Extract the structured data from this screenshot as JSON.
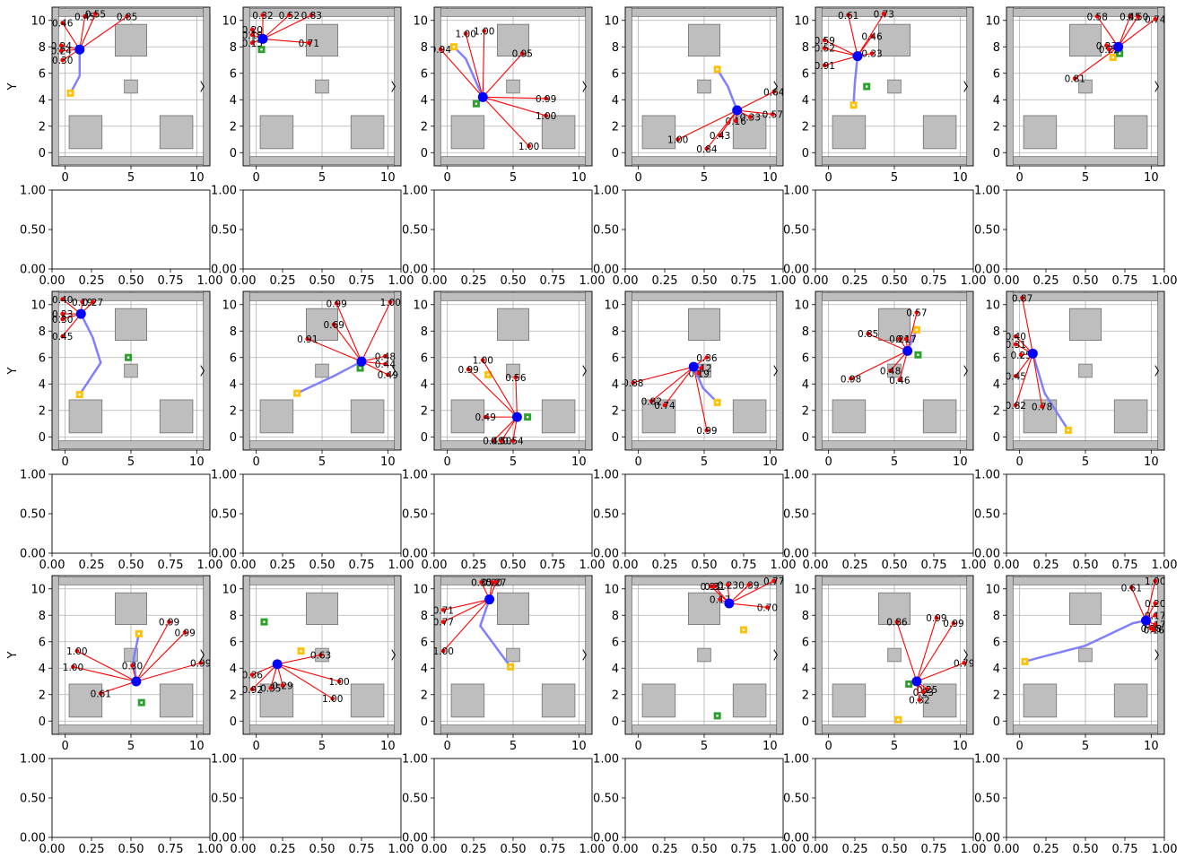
{
  "chart_data": {
    "type": "scatter",
    "grid": true,
    "xlim": [
      -1,
      11
    ],
    "ylim": [
      -1,
      11
    ],
    "xticks": [
      0,
      5,
      10
    ],
    "yticks": [
      0,
      2,
      4,
      6,
      8,
      10
    ],
    "empty_ticks": [
      "0.00",
      "0.25",
      "0.50",
      "0.75",
      "1.00"
    ],
    "ylabel": "Y",
    "colors": {
      "robot": "#0000ff",
      "ray": "#ff0000",
      "path": "#8080ff",
      "goal": "#2ca02c",
      "start": "#ffc107",
      "obstacle_fill": "#bebebe",
      "obstacle_edge": "#707070"
    },
    "obstacles": [
      [
        -0.5,
        10.3,
        11,
        0.6
      ],
      [
        -0.5,
        -0.9,
        11,
        0.6
      ],
      [
        -1,
        -1,
        0.5,
        12
      ],
      [
        10.5,
        -1,
        0.5,
        12
      ],
      [
        3.8,
        7.3,
        2.4,
        2.4
      ],
      [
        4.5,
        4.5,
        1,
        1
      ],
      [
        0.3,
        0.3,
        2.5,
        2.5
      ],
      [
        7.2,
        0.3,
        2.5,
        2.5
      ]
    ],
    "panels": [
      {
        "robot": [
          1.1,
          7.8
        ],
        "start": [
          0.4,
          4.5
        ],
        "goal": null,
        "path": [
          [
            0.4,
            4.5
          ],
          [
            1.1,
            5.8
          ],
          [
            1.1,
            7.8
          ]
        ],
        "rays": [
          [
            -0.2,
            9.8,
            "0.46"
          ],
          [
            1.5,
            10.3,
            "0.45"
          ],
          [
            2.3,
            10.5,
            "0.55"
          ],
          [
            4.7,
            10.3,
            "0.85"
          ],
          [
            -0.3,
            8.1,
            "0.24"
          ],
          [
            -0.3,
            7.7,
            "0.24"
          ],
          [
            -0.2,
            7.0,
            "0.30"
          ]
        ]
      },
      {
        "robot": [
          0.5,
          8.6
        ],
        "start": null,
        "goal": [
          0.4,
          7.8
        ],
        "path": [],
        "rays": [
          [
            0.5,
            10.4,
            "0.32"
          ],
          [
            2.5,
            10.4,
            "0.52"
          ],
          [
            4.2,
            10.4,
            "0.83"
          ],
          [
            -0.3,
            9.3,
            "0.20"
          ],
          [
            -0.3,
            8.9,
            "0.18"
          ],
          [
            -0.3,
            8.3,
            "0.15"
          ],
          [
            4.0,
            8.3,
            "0.71"
          ]
        ]
      },
      {
        "robot": [
          2.7,
          4.2
        ],
        "start": [
          0.5,
          8.0
        ],
        "goal": [
          2.2,
          3.7
        ],
        "path": [
          [
            0.5,
            8.0
          ],
          [
            1.4,
            7.1
          ],
          [
            2.7,
            4.2
          ]
        ],
        "rays": [
          [
            1.4,
            9.0,
            "1.00"
          ],
          [
            2.8,
            9.2,
            "1.00"
          ],
          [
            -0.5,
            7.8,
            "0.94"
          ],
          [
            5.7,
            7.5,
            "0.95"
          ],
          [
            7.5,
            4.1,
            "0.99"
          ],
          [
            7.5,
            2.8,
            "1.00"
          ],
          [
            6.2,
            0.5,
            "1.00"
          ]
        ]
      },
      {
        "robot": [
          7.5,
          3.2
        ],
        "start": [
          6.0,
          6.3
        ],
        "goal": null,
        "path": [
          [
            6.0,
            6.3
          ],
          [
            6.8,
            5.0
          ],
          [
            7.5,
            3.2
          ]
        ],
        "rays": [
          [
            10.3,
            4.6,
            "0.64"
          ],
          [
            10.2,
            2.9,
            "0.57"
          ],
          [
            8.5,
            2.7,
            "0.33"
          ],
          [
            7.4,
            2.4,
            "0.16"
          ],
          [
            6.2,
            1.3,
            "0.43"
          ],
          [
            5.2,
            0.3,
            "0.84"
          ],
          [
            3.0,
            1.0,
            "1.00"
          ]
        ]
      },
      {
        "robot": [
          2.2,
          7.3
        ],
        "start": [
          1.9,
          3.6
        ],
        "goal": [
          2.9,
          5.0
        ],
        "path": [
          [
            1.9,
            3.6
          ],
          [
            2.0,
            5.3
          ],
          [
            2.2,
            7.3
          ]
        ],
        "rays": [
          [
            1.5,
            10.4,
            "0.61"
          ],
          [
            4.2,
            10.5,
            "0.73"
          ],
          [
            3.3,
            8.8,
            "0.46"
          ],
          [
            -0.3,
            8.5,
            "0.59"
          ],
          [
            -0.3,
            7.9,
            "0.52"
          ],
          [
            3.3,
            7.5,
            "0.33"
          ],
          [
            -0.3,
            6.6,
            "0.91"
          ]
        ]
      },
      {
        "robot": [
          7.5,
          8.0
        ],
        "start": [
          7.1,
          7.2
        ],
        "goal": [
          7.6,
          7.5
        ],
        "path": [
          [
            7.1,
            7.2
          ],
          [
            7.5,
            8.0
          ]
        ],
        "rays": [
          [
            5.9,
            10.3,
            "0.58"
          ],
          [
            8.4,
            10.3,
            "0.45"
          ],
          [
            9.0,
            10.3,
            "0.50"
          ],
          [
            10.3,
            10.1,
            "0.74"
          ],
          [
            6.6,
            8.1,
            "0.23"
          ],
          [
            6.8,
            7.8,
            "0.22"
          ],
          [
            4.2,
            5.6,
            "0.81"
          ]
        ]
      },
      {
        "robot": [
          1.2,
          9.3
        ],
        "start": [
          1.1,
          3.2
        ],
        "goal": [
          4.8,
          6.0
        ],
        "path": [
          [
            1.1,
            3.2
          ],
          [
            2.7,
            5.6
          ],
          [
            2.1,
            7.5
          ],
          [
            1.2,
            9.3
          ]
        ],
        "rays": [
          [
            -0.2,
            10.4,
            "0.40"
          ],
          [
            1.3,
            10.2,
            "0.19"
          ],
          [
            2.1,
            10.2,
            "0.27"
          ],
          [
            -0.2,
            9.3,
            "0.23"
          ],
          [
            -0.2,
            8.9,
            "0.30"
          ],
          [
            -0.2,
            7.6,
            "0.45"
          ]
        ]
      },
      {
        "robot": [
          8.0,
          5.7
        ],
        "start": [
          3.1,
          3.3
        ],
        "goal": [
          7.9,
          5.2
        ],
        "path": [
          [
            3.1,
            3.3
          ],
          [
            5.9,
            4.6
          ],
          [
            8.0,
            5.7
          ]
        ],
        "rays": [
          [
            6.1,
            10.1,
            "0.99"
          ],
          [
            10.2,
            10.2,
            "1.00"
          ],
          [
            5.9,
            8.5,
            "0.69"
          ],
          [
            3.9,
            7.4,
            "0.91"
          ],
          [
            9.8,
            6.1,
            "0.48"
          ],
          [
            9.8,
            5.5,
            "0.44"
          ],
          [
            10.0,
            4.7,
            "0.49"
          ]
        ]
      },
      {
        "robot": [
          5.3,
          1.5
        ],
        "start": [
          3.1,
          4.7
        ],
        "goal": [
          6.1,
          1.5
        ],
        "path": [],
        "rays": [
          [
            2.7,
            5.8,
            "1.00"
          ],
          [
            1.6,
            5.1,
            "0.99"
          ],
          [
            5.2,
            4.5,
            "0.56"
          ],
          [
            2.9,
            1.5,
            "0.49"
          ],
          [
            3.5,
            -0.3,
            "0.49"
          ],
          [
            4.1,
            -0.3,
            "0.50"
          ],
          [
            5.0,
            -0.3,
            "0.54"
          ]
        ]
      },
      {
        "robot": [
          4.2,
          5.3
        ],
        "start": [
          6.0,
          2.6
        ],
        "goal": null,
        "path": [
          [
            6.0,
            2.6
          ],
          [
            4.9,
            3.7
          ],
          [
            4.2,
            5.3
          ]
        ],
        "rays": [
          [
            5.2,
            6.0,
            "0.36"
          ],
          [
            4.8,
            5.2,
            "0.12"
          ],
          [
            4.6,
            4.8,
            "0.19"
          ],
          [
            -0.4,
            4.1,
            "0.88"
          ],
          [
            1.0,
            2.7,
            "0.82"
          ],
          [
            2.0,
            2.4,
            "0.74"
          ],
          [
            5.2,
            0.5,
            "0.99"
          ]
        ]
      },
      {
        "robot": [
          6.0,
          6.5
        ],
        "start": [
          6.7,
          8.1
        ],
        "goal": [
          6.8,
          6.2
        ],
        "path": [
          [
            6.7,
            8.1
          ],
          [
            6.0,
            6.5
          ]
        ],
        "rays": [
          [
            6.7,
            9.4,
            "0.57"
          ],
          [
            3.0,
            7.8,
            "0.85"
          ],
          [
            5.4,
            7.4,
            "0.21"
          ],
          [
            5.9,
            7.4,
            "0.17"
          ],
          [
            4.7,
            5.0,
            "0.48"
          ],
          [
            1.7,
            4.4,
            "0.98"
          ],
          [
            5.4,
            4.3,
            "0.46"
          ]
        ]
      },
      {
        "robot": [
          1.0,
          6.3
        ],
        "start": [
          3.7,
          0.5
        ],
        "goal": null,
        "path": [
          [
            3.7,
            0.5
          ],
          [
            1.9,
            3.3
          ],
          [
            1.0,
            6.3
          ]
        ],
        "rays": [
          [
            0.2,
            10.5,
            "0.87"
          ],
          [
            -0.3,
            7.6,
            "0.40"
          ],
          [
            -0.3,
            7.0,
            "0.31"
          ],
          [
            0.1,
            6.2,
            "0.25"
          ],
          [
            -0.3,
            4.6,
            "0.45"
          ],
          [
            -0.3,
            2.4,
            "0.82"
          ],
          [
            1.7,
            2.3,
            "0.78"
          ]
        ]
      },
      {
        "robot": [
          5.4,
          3.0
        ],
        "start": [
          5.6,
          6.6
        ],
        "goal": [
          5.8,
          1.4
        ],
        "path": [
          [
            5.6,
            6.6
          ],
          [
            5.2,
            4.7
          ],
          [
            5.4,
            3.0
          ]
        ],
        "rays": [
          [
            7.9,
            7.5,
            "0.99"
          ],
          [
            9.1,
            6.7,
            "0.99"
          ],
          [
            0.9,
            5.3,
            "1.00"
          ],
          [
            0.6,
            4.1,
            "1.00"
          ],
          [
            5.1,
            4.2,
            "0.30"
          ],
          [
            10.3,
            4.4,
            "0.99"
          ],
          [
            2.7,
            2.1,
            "0.61"
          ]
        ]
      },
      {
        "robot": [
          1.6,
          4.3
        ],
        "start": [
          3.4,
          5.3
        ],
        "goal": [
          0.6,
          7.5
        ],
        "path": [],
        "rays": [
          [
            4.9,
            5.0,
            "0.63"
          ],
          [
            -0.3,
            3.5,
            "0.36"
          ],
          [
            6.3,
            3.0,
            "1.00"
          ],
          [
            -0.3,
            2.4,
            "0.92"
          ],
          [
            1.1,
            2.5,
            "0.35"
          ],
          [
            2.0,
            2.7,
            "0.29"
          ],
          [
            5.8,
            1.7,
            "1.00"
          ]
        ]
      },
      {
        "robot": [
          3.2,
          9.2
        ],
        "start": [
          4.8,
          4.1
        ],
        "goal": null,
        "path": [
          [
            4.8,
            4.1
          ],
          [
            2.5,
            7.2
          ],
          [
            3.2,
            9.2
          ]
        ],
        "rays": [
          [
            2.6,
            10.5,
            "0.35"
          ],
          [
            3.4,
            10.5,
            "0.20"
          ],
          [
            3.7,
            10.5,
            "0.27"
          ],
          [
            -0.3,
            8.4,
            "0.71"
          ],
          [
            -0.3,
            7.5,
            "0.77"
          ],
          [
            -0.3,
            5.3,
            "1.00"
          ]
        ]
      },
      {
        "robot": [
          6.9,
          8.9
        ],
        "start": [
          8.0,
          6.9
        ],
        "goal": [
          6.0,
          0.4
        ],
        "path": [],
        "rays": [
          [
            5.5,
            10.2,
            "0.31"
          ],
          [
            5.8,
            10.2,
            "0.31"
          ],
          [
            6.8,
            10.3,
            "0.23"
          ],
          [
            8.4,
            10.3,
            "0.39"
          ],
          [
            10.3,
            10.6,
            "0.77"
          ],
          [
            6.2,
            9.2,
            "0.17"
          ],
          [
            9.8,
            8.6,
            "0.70"
          ]
        ]
      },
      {
        "robot": [
          6.7,
          3.0
        ],
        "start": [
          5.3,
          0.1
        ],
        "goal": [
          6.1,
          2.8
        ],
        "path": [],
        "rays": [
          [
            8.2,
            7.8,
            "0.99"
          ],
          [
            9.5,
            7.4,
            "0.99"
          ],
          [
            5.2,
            7.5,
            "0.86"
          ],
          [
            10.3,
            4.4,
            "0.79"
          ],
          [
            7.5,
            2.4,
            "0.25"
          ],
          [
            7.2,
            2.2,
            "0.23"
          ],
          [
            6.9,
            1.6,
            "0.32"
          ]
        ]
      },
      {
        "robot": [
          9.6,
          7.6
        ],
        "start": [
          0.4,
          4.5
        ],
        "goal": null,
        "path": [
          [
            0.4,
            4.5
          ],
          [
            1.5,
            4.8
          ],
          [
            5.0,
            5.7
          ],
          [
            8.6,
            7.4
          ],
          [
            9.6,
            7.6
          ]
        ],
        "rays": [
          [
            10.3,
            10.6,
            "1.00"
          ],
          [
            8.5,
            10.1,
            "0.61"
          ],
          [
            10.3,
            8.9,
            "0.20"
          ],
          [
            10.3,
            8.0,
            "0.17"
          ],
          [
            10.3,
            7.3,
            "0.17"
          ],
          [
            10.0,
            7.0,
            "0.18"
          ],
          [
            10.2,
            6.9,
            "0.16"
          ]
        ]
      }
    ]
  }
}
